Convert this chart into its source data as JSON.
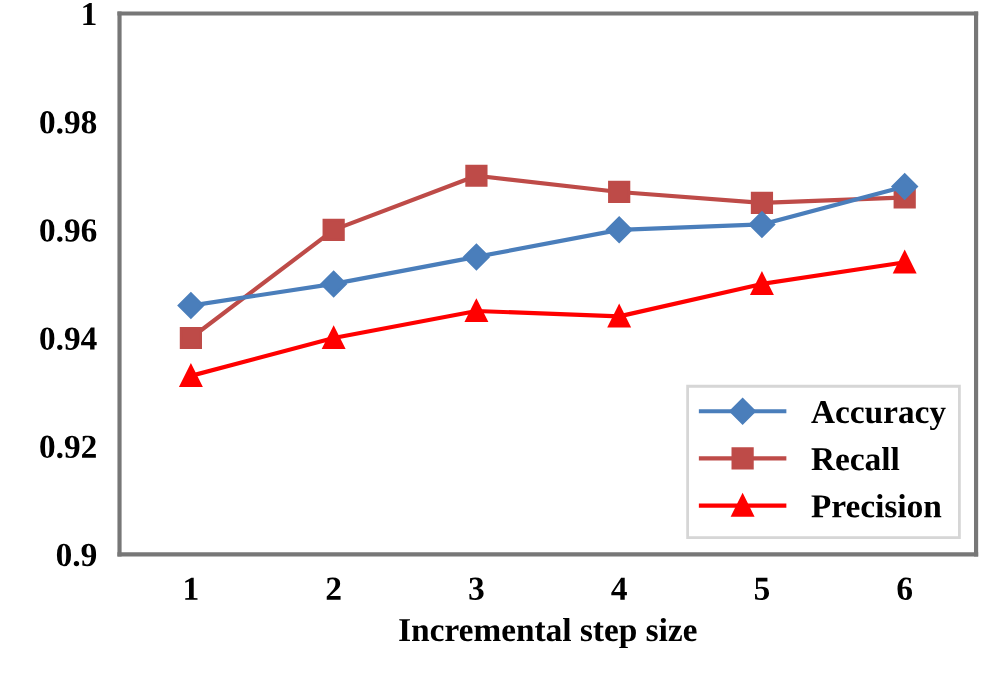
{
  "chart_data": {
    "type": "line",
    "xlabel": "Incremental step size",
    "categories": [
      "1",
      "2",
      "3",
      "4",
      "5",
      "6"
    ],
    "series": [
      {
        "name": "Accuracy",
        "color": "#4a7ebb",
        "marker": "diamond",
        "values": [
          0.946,
          0.95,
          0.955,
          0.96,
          0.961,
          0.968
        ]
      },
      {
        "name": "Recall",
        "color": "#be4b48",
        "marker": "square",
        "values": [
          0.94,
          0.96,
          0.97,
          0.967,
          0.965,
          0.966
        ]
      },
      {
        "name": "Precision",
        "color": "#ff0000",
        "marker": "triangle",
        "values": [
          0.933,
          0.94,
          0.945,
          0.944,
          0.95,
          0.954
        ]
      }
    ],
    "ylim": [
      0.9,
      1
    ],
    "yticks": [
      {
        "value": 0.9,
        "label": "0.9"
      },
      0.92,
      0.94,
      0.96,
      0.98,
      {
        "value": 1,
        "label": "1"
      }
    ],
    "grid": false,
    "legend": "bottom right",
    "line_style": "solid"
  }
}
